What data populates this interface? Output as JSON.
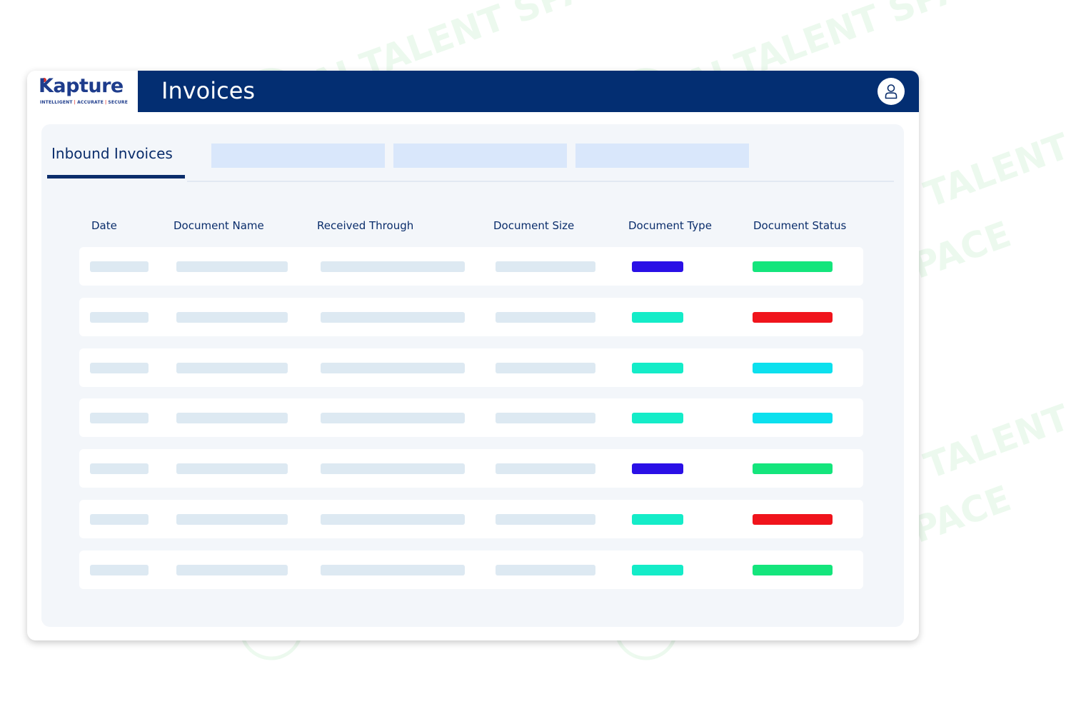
{
  "brand": {
    "name": "Kapture",
    "tagline_parts": [
      "INTELLIGENT",
      "ACCURATE",
      "SECURE"
    ],
    "colors": {
      "primary": "#1e3c8c",
      "accent": "#e0302a"
    }
  },
  "header": {
    "title": "Invoices",
    "bar_color": "#032e72",
    "user_button_icon": "user-icon"
  },
  "tabs": {
    "active_label": "Inbound Invoices",
    "placeholder_count": 3
  },
  "table": {
    "columns": [
      "Date",
      "Document Name",
      "Received Through",
      "Document Size",
      "Document Type",
      "Document Status"
    ],
    "rows": [
      {
        "type_color": "#2a10e6",
        "status_color": "#14e57c"
      },
      {
        "type_color": "#14ecc8",
        "status_color": "#f0141c"
      },
      {
        "type_color": "#14ecc8",
        "status_color": "#0ce0ee"
      },
      {
        "type_color": "#14ecc8",
        "status_color": "#0ce0ee"
      },
      {
        "type_color": "#2a10e6",
        "status_color": "#14e57c"
      },
      {
        "type_color": "#14ecc8",
        "status_color": "#f0141c"
      },
      {
        "type_color": "#14ecc8",
        "status_color": "#14e57c"
      }
    ]
  },
  "watermark": {
    "text": "AI TALENT SPACE",
    "icon": "brain-icon"
  }
}
